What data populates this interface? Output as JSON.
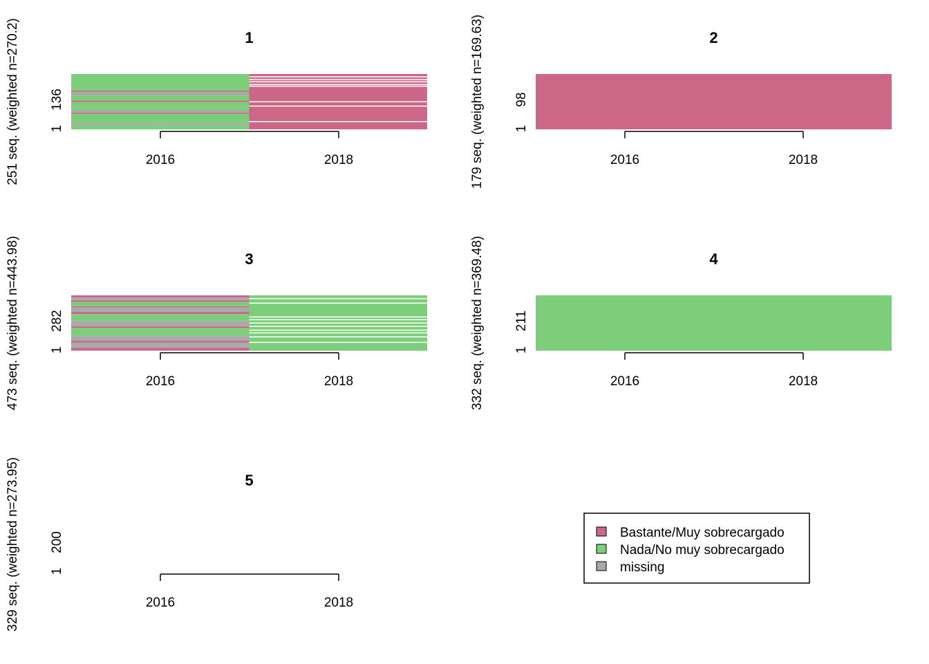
{
  "chart_data": {
    "type": "sequence-index-plot",
    "colors": {
      "bastante": "#CC6788",
      "nada": "#7DCE7A",
      "missing": "#A9A9A9"
    },
    "x_ticks": [
      "2016",
      "2018"
    ],
    "y_bottom_tick": "1",
    "panels": [
      {
        "title": "1",
        "ylabel": "251 seq. (weighted n=270.2)",
        "y_tick": "136",
        "bands": [
          {
            "x": "2016",
            "rows": [
              {
                "state": "nada",
                "w": 0.3
              },
              {
                "state": "bastante",
                "w": 0.02
              },
              {
                "state": "missing",
                "w": 0.06
              },
              {
                "state": "nada",
                "w": 0.1
              },
              {
                "state": "bastante",
                "w": 0.03
              },
              {
                "state": "nada",
                "w": 0.14
              },
              {
                "state": "missing",
                "w": 0.05
              },
              {
                "state": "bastante",
                "w": 0.02
              },
              {
                "state": "nada",
                "w": 0.16
              },
              {
                "state": "missing",
                "w": 0.04
              },
              {
                "state": "nada",
                "w": 0.08
              }
            ]
          },
          {
            "x": "2018",
            "rows": [
              {
                "state": "bastante",
                "w": 0.05
              },
              {
                "state": "bastante",
                "w": 0.05
              },
              {
                "state": "bastante",
                "w": 0.04
              },
              {
                "state": "bastante",
                "w": 0.05
              },
              {
                "state": "bastante",
                "w": 0.03
              },
              {
                "state": "bastante",
                "w": 0.28
              },
              {
                "state": "bastante",
                "w": 0.08
              },
              {
                "state": "bastante",
                "w": 0.28
              },
              {
                "state": "bastante",
                "w": 0.14
              }
            ]
          }
        ]
      },
      {
        "title": "2",
        "ylabel": "179 seq. (weighted n=169.63)",
        "y_tick": "98",
        "bands": [
          {
            "x": "2016",
            "rows": [
              {
                "state": "bastante",
                "w": 1.0
              }
            ]
          },
          {
            "x": "2018",
            "rows": [
              {
                "state": "bastante",
                "w": 1.0
              }
            ]
          }
        ]
      },
      {
        "title": "3",
        "ylabel": "473 seq. (weighted n=443.98)",
        "y_tick": "282",
        "bands": [
          {
            "x": "2016",
            "rows": [
              {
                "state": "bastante",
                "w": 0.04
              },
              {
                "state": "missing",
                "w": 0.05
              },
              {
                "state": "bastante",
                "w": 0.03
              },
              {
                "state": "nada",
                "w": 0.08
              },
              {
                "state": "bastante",
                "w": 0.02
              },
              {
                "state": "missing",
                "w": 0.08
              },
              {
                "state": "bastante",
                "w": 0.04
              },
              {
                "state": "nada",
                "w": 0.12
              },
              {
                "state": "missing",
                "w": 0.1
              },
              {
                "state": "bastante",
                "w": 0.03
              },
              {
                "state": "nada",
                "w": 0.14
              },
              {
                "state": "missing",
                "w": 0.09
              },
              {
                "state": "bastante",
                "w": 0.03
              },
              {
                "state": "missing",
                "w": 0.1
              },
              {
                "state": "bastante",
                "w": 0.05
              }
            ]
          },
          {
            "x": "2018",
            "rows": [
              {
                "state": "nada",
                "w": 0.06
              },
              {
                "state": "nada",
                "w": 0.08
              },
              {
                "state": "nada",
                "w": 0.25
              },
              {
                "state": "nada",
                "w": 0.05
              },
              {
                "state": "nada",
                "w": 0.06
              },
              {
                "state": "nada",
                "w": 0.06
              },
              {
                "state": "nada",
                "w": 0.07
              },
              {
                "state": "nada",
                "w": 0.05
              },
              {
                "state": "nada",
                "w": 0.07
              },
              {
                "state": "nada",
                "w": 0.1
              },
              {
                "state": "nada",
                "w": 0.15
              }
            ]
          }
        ]
      },
      {
        "title": "4",
        "ylabel": "332 seq. (weighted n=369.48)",
        "y_tick": "211",
        "bands": [
          {
            "x": "2016",
            "rows": [
              {
                "state": "nada",
                "w": 1.0
              }
            ]
          },
          {
            "x": "2018",
            "rows": [
              {
                "state": "nada",
                "w": 1.0
              }
            ]
          }
        ]
      },
      {
        "title": "5",
        "ylabel": "329 seq. (weighted n=273.95)",
        "y_tick": "200",
        "bands": []
      }
    ],
    "legend": [
      {
        "state": "bastante",
        "label": "Bastante/Muy sobrecargado"
      },
      {
        "state": "nada",
        "label": "Nada/No muy sobrecargado"
      },
      {
        "state": "missing",
        "label": "missing"
      }
    ]
  }
}
